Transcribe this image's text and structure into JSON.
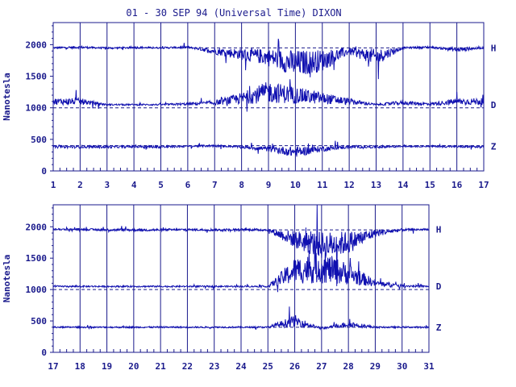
{
  "title": "01 - 30 SEP 94 (Universal Time) DIXON",
  "colors": {
    "ink": "#1a1a8c",
    "trace": "#1010b0",
    "background": "#ffffff"
  },
  "chart_data": [
    {
      "type": "line",
      "title": "01 - 30 SEP 94 (Universal Time) DIXON",
      "ylabel": "Nanotesla",
      "xlabel": "",
      "xlim": [
        1,
        17
      ],
      "ylim": [
        0,
        2350
      ],
      "x_ticks": [
        "1",
        "2",
        "3",
        "4",
        "5",
        "6",
        "7",
        "8",
        "9",
        "10",
        "11",
        "12",
        "13",
        "14",
        "15",
        "16",
        "17"
      ],
      "y_ticks": [
        "0",
        "500",
        "1000",
        "1500",
        "2000"
      ],
      "grid": "vertical day lines; dashed baselines at 400, 1000, 1950",
      "baselines": [
        400,
        1000,
        1950
      ],
      "series": [
        {
          "name": "H",
          "baseline": 1950,
          "values": [
            1950,
            1960,
            1945,
            1955,
            1950,
            1960,
            1900,
            1850,
            1800,
            1700,
            1750,
            1900,
            1800,
            1950,
            1960,
            1920,
            1950
          ]
        },
        {
          "name": "D",
          "baseline": 1050,
          "values": [
            1100,
            1100,
            1050,
            1050,
            1050,
            1060,
            1080,
            1150,
            1250,
            1200,
            1150,
            1100,
            1050,
            1080,
            1060,
            1100,
            1100
          ]
        },
        {
          "name": "Z",
          "baseline": 390,
          "values": [
            380,
            380,
            380,
            385,
            380,
            390,
            400,
            380,
            350,
            300,
            350,
            380,
            380,
            390,
            390,
            385,
            380
          ]
        }
      ]
    },
    {
      "type": "line",
      "title": "",
      "ylabel": "Nanotesla",
      "xlabel": "",
      "xlim": [
        17,
        31
      ],
      "ylim": [
        0,
        2350
      ],
      "x_ticks": [
        "17",
        "18",
        "19",
        "20",
        "21",
        "22",
        "23",
        "24",
        "25",
        "26",
        "27",
        "28",
        "29",
        "30",
        "31"
      ],
      "y_ticks": [
        "0",
        "500",
        "1000",
        "1500",
        "2000"
      ],
      "grid": "vertical day lines; dashed baselines at 400, 1000, 1950",
      "baselines": [
        400,
        1000,
        1950
      ],
      "series": [
        {
          "name": "H",
          "baseline": 1960,
          "values": [
            1960,
            1960,
            1950,
            1950,
            1950,
            1955,
            1950,
            1955,
            1950,
            1800,
            1700,
            1750,
            1900,
            1950,
            1960
          ]
        },
        {
          "name": "D",
          "baseline": 1050,
          "values": [
            1050,
            1050,
            1050,
            1050,
            1050,
            1050,
            1050,
            1050,
            1050,
            1300,
            1350,
            1250,
            1100,
            1060,
            1050
          ]
        },
        {
          "name": "Z",
          "baseline": 400,
          "values": [
            400,
            400,
            400,
            400,
            400,
            400,
            400,
            400,
            400,
            500,
            380,
            450,
            400,
            400,
            400
          ]
        }
      ]
    }
  ]
}
